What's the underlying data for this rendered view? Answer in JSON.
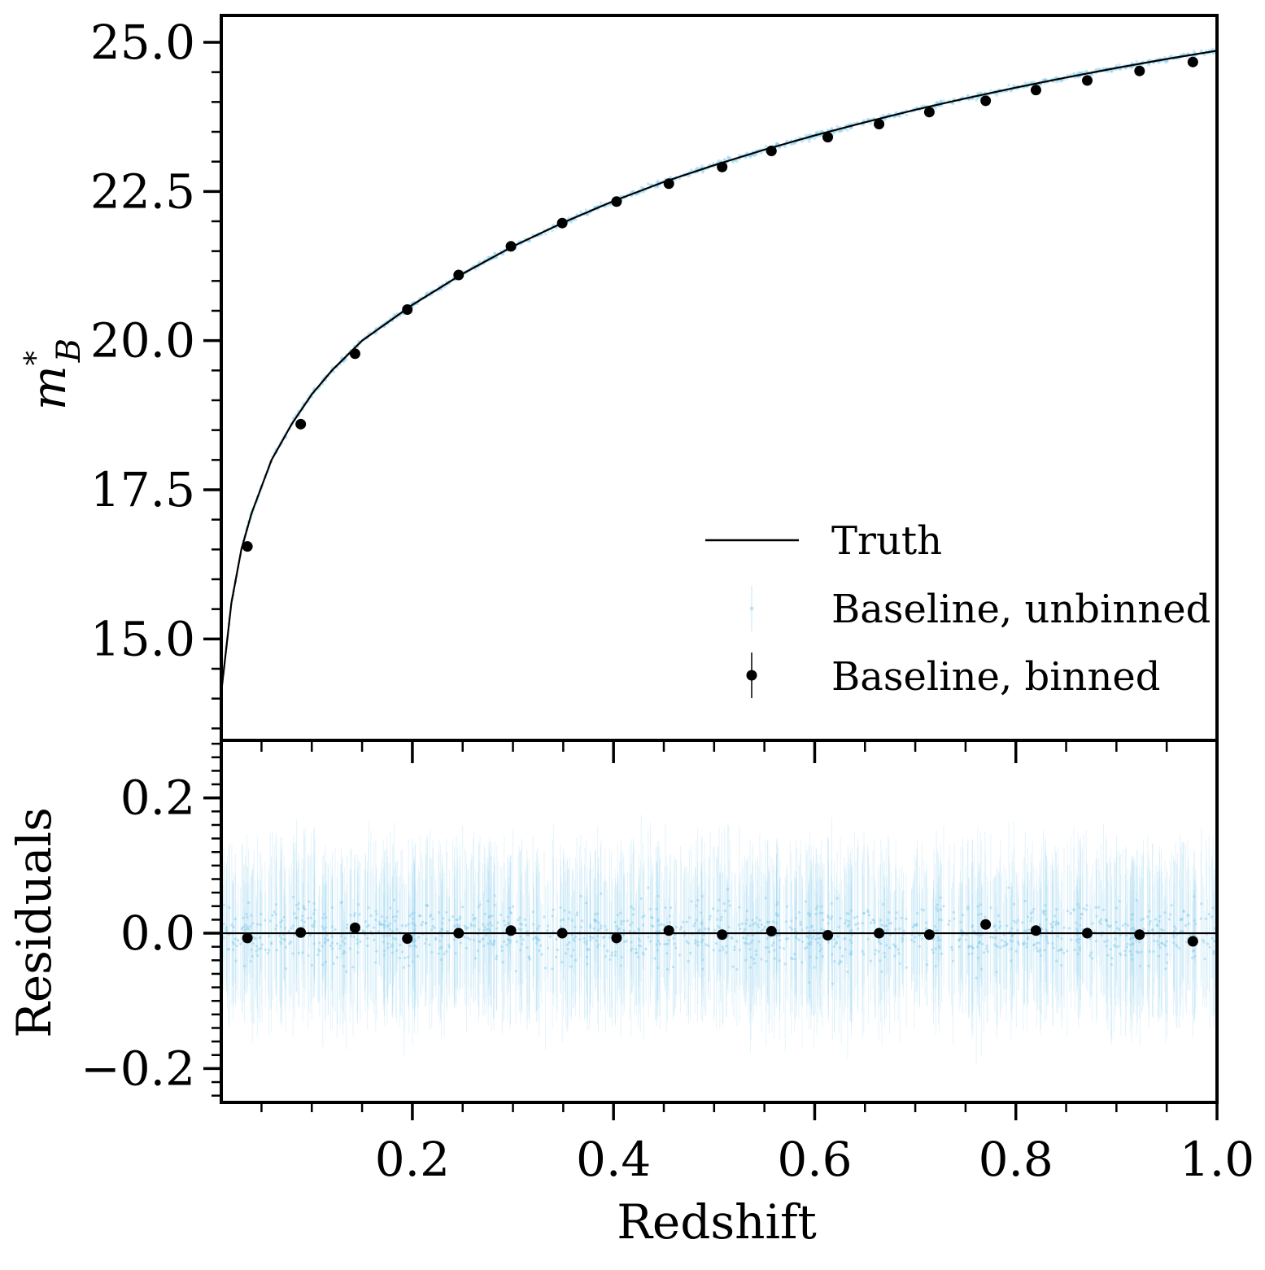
{
  "chart_data": [
    {
      "type": "scatter",
      "panel": "top",
      "title": "",
      "xlabel": "",
      "ylabel": "m*_B",
      "ylabel_main": "m",
      "ylabel_sup": "*",
      "ylabel_sub": "B",
      "xlim": [
        0.01,
        1.0
      ],
      "ylim": [
        13.3,
        25.45
      ],
      "yticks": [
        15.0,
        17.5,
        20.0,
        22.5,
        25.0
      ],
      "ytick_labels": [
        "15.0",
        "17.5",
        "20.0",
        "22.5",
        "25.0"
      ],
      "grid": false,
      "legend": {
        "location": "lower-right",
        "entries": [
          {
            "label": "Truth",
            "style": "line"
          },
          {
            "label": "Baseline, unbinned",
            "style": "light-errorbar"
          },
          {
            "label": "Baseline, binned",
            "style": "black-errorbar"
          }
        ]
      },
      "series": [
        {
          "name": "Truth",
          "kind": "line",
          "x": [
            0.01,
            0.02,
            0.03,
            0.04,
            0.06,
            0.08,
            0.1,
            0.12,
            0.15,
            0.2,
            0.25,
            0.3,
            0.35,
            0.4,
            0.45,
            0.5,
            0.55,
            0.6,
            0.65,
            0.7,
            0.75,
            0.8,
            0.85,
            0.9,
            0.95,
            1.0
          ],
          "y": [
            14.1,
            15.6,
            16.5,
            17.1,
            18.0,
            18.6,
            19.1,
            19.5,
            20.0,
            20.6,
            21.12,
            21.58,
            21.98,
            22.34,
            22.66,
            22.94,
            23.2,
            23.44,
            23.66,
            23.87,
            24.06,
            24.24,
            24.41,
            24.57,
            24.72,
            24.86
          ]
        },
        {
          "name": "Baseline, binned",
          "kind": "points",
          "x": [
            0.036,
            0.089,
            0.143,
            0.195,
            0.246,
            0.298,
            0.349,
            0.403,
            0.455,
            0.508,
            0.557,
            0.613,
            0.664,
            0.714,
            0.77,
            0.82,
            0.871,
            0.923,
            0.976
          ],
          "y": [
            16.55,
            18.6,
            19.78,
            20.52,
            21.1,
            21.58,
            21.97,
            22.33,
            22.63,
            22.91,
            23.18,
            23.41,
            23.63,
            23.83,
            24.02,
            24.2,
            24.36,
            24.52,
            24.67
          ]
        }
      ]
    },
    {
      "type": "scatter",
      "panel": "bottom",
      "title": "",
      "xlabel": "Redshift",
      "ylabel": "Residuals",
      "xlim": [
        0.01,
        1.0
      ],
      "ylim": [
        -0.25,
        0.285
      ],
      "xticks": [
        0.2,
        0.4,
        0.6,
        0.8,
        1.0
      ],
      "xtick_labels": [
        "0.2",
        "0.4",
        "0.6",
        "0.8",
        "1.0"
      ],
      "yticks": [
        -0.2,
        0.0,
        0.2
      ],
      "ytick_labels": [
        "−0.2",
        "0.0",
        "0.2"
      ],
      "grid": false,
      "reference_line": 0.0,
      "series": [
        {
          "name": "Baseline, binned",
          "kind": "points",
          "x": [
            0.036,
            0.089,
            0.143,
            0.195,
            0.246,
            0.298,
            0.349,
            0.403,
            0.455,
            0.508,
            0.557,
            0.613,
            0.664,
            0.714,
            0.77,
            0.82,
            0.871,
            0.923,
            0.976
          ],
          "y": [
            -0.007,
            0.001,
            0.008,
            -0.008,
            0.0,
            0.004,
            0.0,
            -0.007,
            0.004,
            -0.002,
            0.003,
            -0.003,
            0.0,
            -0.002,
            0.013,
            0.004,
            0.0,
            -0.002,
            -0.012
          ]
        },
        {
          "name": "Baseline, unbinned",
          "kind": "cloud",
          "description_values": {
            "center": 0.0,
            "scatter_sigma": 0.06,
            "x_range": [
              0.01,
              1.0
            ]
          }
        }
      ]
    }
  ],
  "colors": {
    "unbinned": "#87ceeb",
    "binned": "#000000",
    "truth": "#000000"
  }
}
